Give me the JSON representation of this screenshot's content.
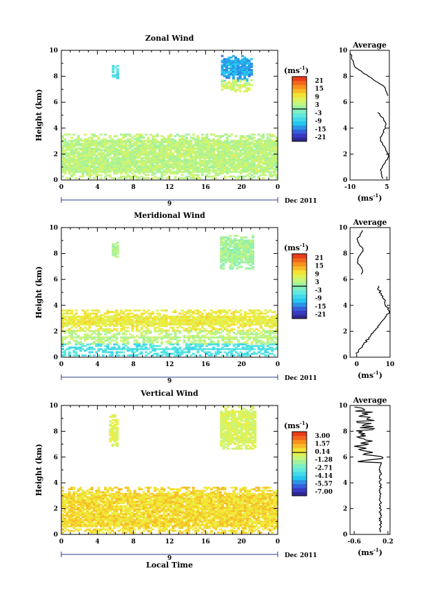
{
  "chart_data": [
    {
      "type": "heatmap",
      "title": "Zonal Wind",
      "ylabel": "Height (km)",
      "xlabel": "",
      "xlim": [
        0,
        24
      ],
      "ylim": [
        0,
        10
      ],
      "xticks": [
        "0",
        "4",
        "8",
        "12",
        "16",
        "20",
        "0"
      ],
      "yticks": [
        "0",
        "2",
        "4",
        "6",
        "8",
        "10"
      ],
      "date_marker": "9",
      "date_label": "Dec 2011",
      "colorbar": {
        "unit": "(ms",
        "unit_sup": "-1",
        "unit_close": ")",
        "ticks": [
          "21",
          "15",
          "9",
          "3",
          "-3",
          "-9",
          "-15",
          "-21"
        ],
        "range": [
          -24,
          24
        ]
      },
      "average": {
        "title": "Average",
        "xticks": [
          "-10",
          "5"
        ],
        "xlim": [
          -10,
          6
        ],
        "xlabel": "(ms",
        "xlabel_sup": "-1",
        "xlabel_close": ")"
      },
      "regions": [
        {
          "x0": 0,
          "x1": 24,
          "y0": 0.1,
          "y1": 3.5,
          "value": 4
        },
        {
          "x0": 5.6,
          "x1": 6.2,
          "y0": 7.8,
          "y1": 8.8,
          "value": -6
        },
        {
          "x0": 17.7,
          "x1": 21.2,
          "y0": 7.6,
          "y1": 9.6,
          "value": -12
        },
        {
          "x0": 17.7,
          "x1": 21.2,
          "y0": 6.8,
          "y1": 7.7,
          "value": 6
        }
      ]
    },
    {
      "type": "heatmap",
      "title": "Meridional Wind",
      "ylabel": "Height (km)",
      "xlabel": "",
      "xlim": [
        0,
        24
      ],
      "ylim": [
        0,
        10
      ],
      "xticks": [
        "0",
        "4",
        "8",
        "12",
        "16",
        "20",
        "0"
      ],
      "yticks": [
        "0",
        "2",
        "4",
        "6",
        "8",
        "10"
      ],
      "date_marker": "9",
      "date_label": "Dec 2011",
      "colorbar": {
        "unit": "(ms",
        "unit_sup": "-1",
        "unit_close": ")",
        "ticks": [
          "21",
          "15",
          "9",
          "3",
          "-3",
          "-9",
          "-15",
          "-21"
        ],
        "range": [
          -24,
          24
        ]
      },
      "average": {
        "title": "Average",
        "xticks": [
          "0",
          "10"
        ],
        "xlim": [
          -2,
          10
        ],
        "xlabel": "(ms",
        "xlabel_sup": "-1",
        "xlabel_close": ")"
      },
      "regions": [
        {
          "x0": 0,
          "x1": 24,
          "y0": 2.0,
          "y1": 3.6,
          "value": 9
        },
        {
          "x0": 0,
          "x1": 24,
          "y0": 1.0,
          "y1": 2.0,
          "value": 4
        },
        {
          "x0": 0,
          "x1": 24,
          "y0": 0.1,
          "y1": 1.0,
          "value": -6
        },
        {
          "x0": 5.6,
          "x1": 6.2,
          "y0": 7.6,
          "y1": 8.8,
          "value": 3
        },
        {
          "x0": 17.6,
          "x1": 21.2,
          "y0": 6.8,
          "y1": 9.4,
          "value": 2
        }
      ]
    },
    {
      "type": "heatmap",
      "title": "Vertical Wind",
      "ylabel": "Height (km)",
      "xlabel": "Local Time",
      "xlim": [
        0,
        24
      ],
      "ylim": [
        0,
        10
      ],
      "xticks": [
        "0",
        "4",
        "8",
        "12",
        "16",
        "20",
        "0"
      ],
      "yticks": [
        "0",
        "2",
        "4",
        "6",
        "8",
        "10"
      ],
      "date_marker": "9",
      "date_label": "Dec 2011",
      "colorbar": {
        "unit": "(ms",
        "unit_sup": "-1",
        "unit_close": ")",
        "ticks": [
          "3.00",
          "1.57",
          "0.14",
          "-1.28",
          "-2.71",
          "-4.14",
          "-5.57",
          "-7.00"
        ],
        "range": [
          -7.7,
          3.7
        ]
      },
      "average": {
        "title": "Average",
        "xticks": [
          "-0.6",
          "0.2"
        ],
        "xlim": [
          -0.7,
          0.25
        ],
        "xlabel": "(ms",
        "xlabel_sup": "-1",
        "xlabel_close": ")"
      },
      "regions": [
        {
          "x0": 0,
          "x1": 24,
          "y0": 0.1,
          "y1": 3.6,
          "value": 0.6
        },
        {
          "x0": 5.3,
          "x1": 6.3,
          "y0": 6.8,
          "y1": 9.2,
          "value": -0.3
        },
        {
          "x0": 17.6,
          "x1": 21.5,
          "y0": 6.6,
          "y1": 9.9,
          "value": -0.4
        }
      ]
    }
  ]
}
